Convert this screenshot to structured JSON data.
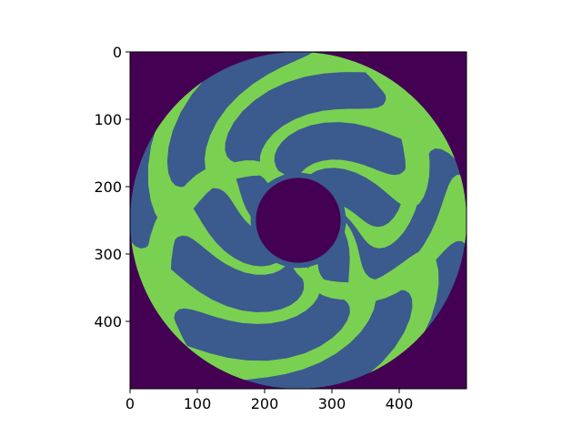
{
  "chart_data": {
    "type": "heatmap",
    "title": "",
    "xlabel": "",
    "ylabel": "",
    "image_size": [
      500,
      500
    ],
    "xlim": [
      0,
      500
    ],
    "ylim": [
      500,
      0
    ],
    "x_ticks": [
      0,
      100,
      200,
      300,
      400
    ],
    "y_ticks": [
      0,
      100,
      200,
      300,
      400
    ],
    "x_tick_labels": [
      "0",
      "100",
      "200",
      "300",
      "400"
    ],
    "y_tick_labels": [
      "0",
      "100",
      "200",
      "300",
      "400"
    ],
    "center": [
      250,
      250
    ],
    "outer_radius": 250,
    "inner_radius": 63,
    "arm_count": 11,
    "colormap": "viridis",
    "colors": {
      "background": "#440154",
      "ring": "#3b5a8e",
      "arms": "#7ad151"
    },
    "grid": false,
    "legend": "none"
  }
}
